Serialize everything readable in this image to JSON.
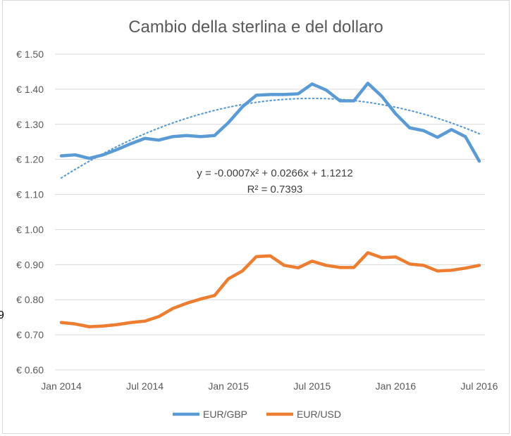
{
  "chart_data": {
    "type": "line",
    "title": "Cambio della sterlina e del dollaro",
    "x": [
      "Jan 2014",
      "Feb 2014",
      "Mar 2014",
      "Apr 2014",
      "May 2014",
      "Jun 2014",
      "Jul 2014",
      "Aug 2014",
      "Sep 2014",
      "Oct 2014",
      "Nov 2014",
      "Dec 2014",
      "Jan 2015",
      "Feb 2015",
      "Mar 2015",
      "Apr 2015",
      "May 2015",
      "Jun 2015",
      "Jul 2015",
      "Aug 2015",
      "Sep 2015",
      "Oct 2015",
      "Nov 2015",
      "Dec 2015",
      "Jan 2016",
      "Feb 2016",
      "Mar 2016",
      "Apr 2016",
      "May 2016",
      "Jun 2016",
      "Jul 2016"
    ],
    "x_tick_labels": [
      "Jan 2014",
      "Jul 2014",
      "Jan 2015",
      "Jul 2015",
      "Jan 2016",
      "Jul 2016"
    ],
    "y_tick_labels": [
      "€ 0.60",
      "€ 0.70",
      "€ 0.80",
      "€ 0.90",
      "€ 1.00",
      "€ 1.10",
      "€ 1.20",
      "€ 1.30",
      "€ 1.40",
      "€ 1.50"
    ],
    "ylim": [
      0.6,
      1.5
    ],
    "grid": "horizontal",
    "legend": "bottom",
    "series": [
      {
        "name": "EUR/GBP",
        "color": "#5b9bd5",
        "values": [
          1.21,
          1.213,
          1.203,
          1.213,
          1.228,
          1.245,
          1.26,
          1.255,
          1.265,
          1.268,
          1.265,
          1.268,
          1.305,
          1.35,
          1.383,
          1.385,
          1.385,
          1.387,
          1.415,
          1.398,
          1.367,
          1.367,
          1.417,
          1.38,
          1.33,
          1.29,
          1.282,
          1.263,
          1.285,
          1.265,
          1.195
        ]
      },
      {
        "name": "EUR/USD",
        "color": "#ed7d31",
        "values": [
          0.735,
          0.731,
          0.723,
          0.725,
          0.729,
          0.735,
          0.739,
          0.752,
          0.775,
          0.79,
          0.802,
          0.812,
          0.86,
          0.882,
          0.923,
          0.925,
          0.898,
          0.891,
          0.91,
          0.898,
          0.892,
          0.892,
          0.934,
          0.92,
          0.922,
          0.902,
          0.898,
          0.882,
          0.884,
          0.89,
          0.898
        ]
      }
    ],
    "trendline": {
      "series": "EUR/GBP",
      "type": "polynomial",
      "coefficients": [
        -0.0007,
        0.0266,
        1.1212
      ],
      "equation": "y = -0.0007x² + 0.0266x + 1.1212",
      "r2": "R² = 0.7393"
    }
  },
  "sheet": {
    "cell_fragment": "9"
  }
}
